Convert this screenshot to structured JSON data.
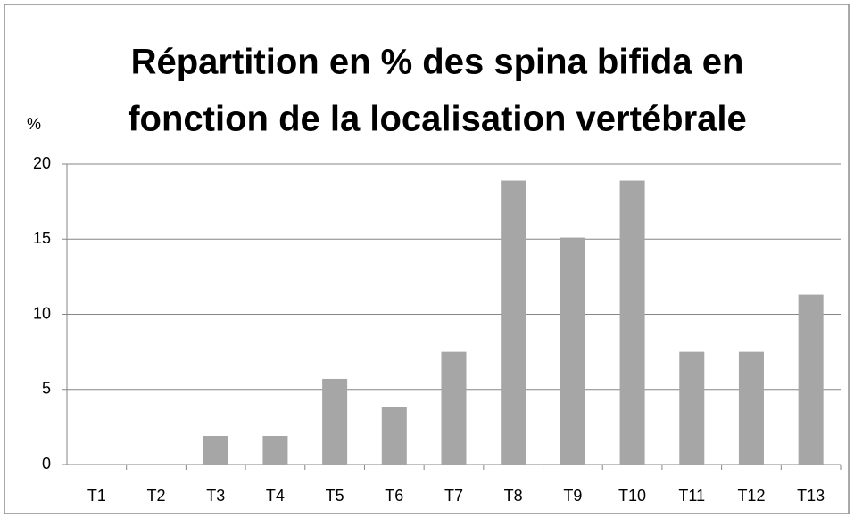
{
  "chart_data": {
    "type": "bar",
    "title": [
      "Répartition en % des spina bifida en",
      "fonction de la localisation vertébrale"
    ],
    "y_label": "%",
    "categories": [
      "T1",
      "T2",
      "T3",
      "T4",
      "T5",
      "T6",
      "T7",
      "T8",
      "T9",
      "T10",
      "T11",
      "T12",
      "T13"
    ],
    "values": [
      0,
      0,
      1.9,
      1.9,
      5.7,
      3.8,
      7.5,
      18.9,
      15.1,
      18.9,
      7.5,
      7.5,
      11.3
    ],
    "color": "#a6a6a6",
    "ylim": [
      0,
      20
    ],
    "yticks": [
      0,
      5,
      10,
      15,
      20
    ],
    "grid": true
  }
}
